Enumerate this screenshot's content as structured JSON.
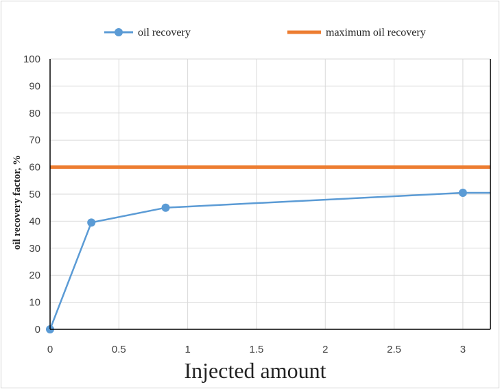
{
  "chart_data": {
    "type": "line",
    "title": "",
    "xlabel": "Injected amount",
    "ylabel": "oil recovery factor, %",
    "xlim": [
      0,
      3.2
    ],
    "ylim": [
      0,
      100
    ],
    "x_ticks": [
      0,
      0.5,
      1,
      1.5,
      2,
      2.5,
      3
    ],
    "y_ticks": [
      0,
      10,
      20,
      30,
      40,
      50,
      60,
      70,
      80,
      90,
      100
    ],
    "grid": true,
    "legend_position": "top",
    "series": [
      {
        "name": "oil recovery",
        "color": "#5b9bd5",
        "marker": "circle",
        "points": [
          {
            "x": 0,
            "y": 0
          },
          {
            "x": 0.3,
            "y": 39.5
          },
          {
            "x": 0.84,
            "y": 45
          },
          {
            "x": 3,
            "y": 50.5
          },
          {
            "x": 3.2,
            "y": 50.5
          }
        ],
        "marker_indices": [
          0,
          1,
          2,
          3
        ]
      },
      {
        "name": "maximum oil recovery",
        "color": "#ed7d31",
        "marker": "none",
        "points": [
          {
            "x": 0,
            "y": 60
          },
          {
            "x": 3.2,
            "y": 60
          }
        ]
      }
    ]
  }
}
